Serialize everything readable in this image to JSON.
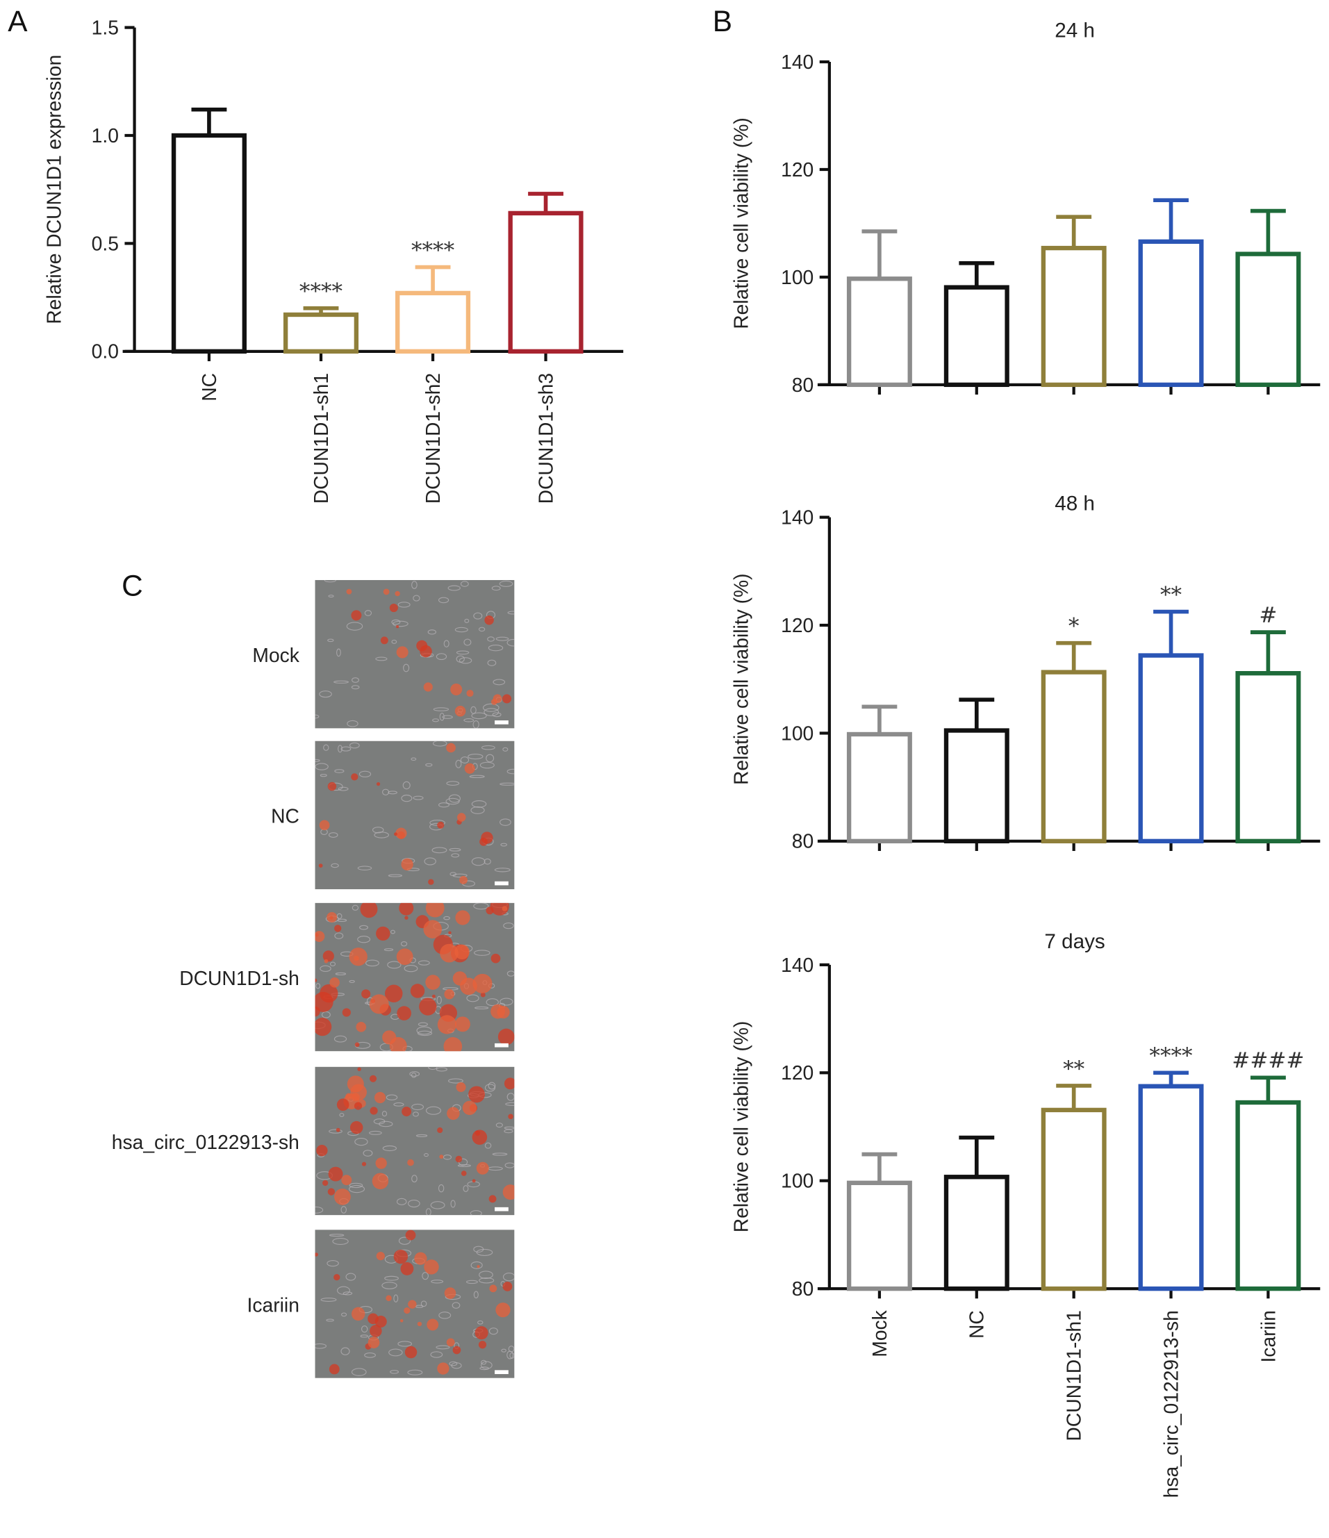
{
  "panel_letters": {
    "a": "A",
    "b": "B",
    "c": "C"
  },
  "colors": {
    "Mock": "#8c8c8c",
    "NC": "#111111",
    "DCUN1D1-sh1": "#8f7f3a",
    "DCUN1D1-sh2": "#f5b97c",
    "DCUN1D1-sh3": "#a8232f",
    "hsa_circ_0122913-sh": "#2a55b5",
    "Icariin": "#1e6b3a"
  },
  "chart_data": [
    {
      "panel": "A",
      "type": "bar",
      "title": "",
      "ylabel": "Relative DCUN1D1 expression",
      "xlabel": "",
      "ylim": [
        0,
        1.5
      ],
      "yticks": [
        "0.0",
        "0.5",
        "1.0",
        "1.5"
      ],
      "categories": [
        "NC",
        "DCUN1D1-sh1",
        "DCUN1D1-sh2",
        "DCUN1D1-sh3"
      ],
      "values": [
        1.0,
        0.17,
        0.27,
        0.64
      ],
      "error_upper": [
        1.12,
        0.2,
        0.39,
        0.73
      ],
      "annotations": [
        "",
        "****",
        "****",
        ""
      ],
      "grid": false
    },
    {
      "panel": "B",
      "type": "bar",
      "title": "24 h",
      "ylabel": "Relative cell viability (%)",
      "xlabel": "",
      "ylim": [
        80,
        140
      ],
      "yticks": [
        "80",
        "100",
        "120",
        "140"
      ],
      "categories": [
        "Mock",
        "NC",
        "DCUN1D1-sh1",
        "hsa_circ_0122913-sh",
        "Icariin"
      ],
      "values": [
        99.7,
        98.1,
        105.4,
        106.6,
        104.3
      ],
      "error_upper": [
        108.5,
        102.6,
        111.2,
        114.3,
        112.3
      ],
      "annotations": [
        "",
        "",
        "",
        "",
        ""
      ],
      "grid": false
    },
    {
      "panel": "B",
      "type": "bar",
      "title": "48 h",
      "ylabel": "Relative cell viability (%)",
      "xlabel": "",
      "ylim": [
        80,
        140
      ],
      "yticks": [
        "80",
        "100",
        "120",
        "140"
      ],
      "categories": [
        "Mock",
        "NC",
        "DCUN1D1-sh1",
        "hsa_circ_0122913-sh",
        "Icariin"
      ],
      "values": [
        99.8,
        100.5,
        111.3,
        114.4,
        111.1
      ],
      "error_upper": [
        104.9,
        106.2,
        116.7,
        122.5,
        118.7
      ],
      "annotations": [
        "",
        "",
        "*",
        "**",
        "#"
      ],
      "grid": false
    },
    {
      "panel": "B",
      "type": "bar",
      "title": "7 days",
      "ylabel": "Relative cell viability (%)",
      "xlabel": "",
      "ylim": [
        80,
        140
      ],
      "yticks": [
        "80",
        "100",
        "120",
        "140"
      ],
      "categories": [
        "Mock",
        "NC",
        "DCUN1D1-sh1",
        "hsa_circ_0122913-sh",
        "Icariin"
      ],
      "values": [
        99.6,
        100.7,
        113.1,
        117.5,
        114.5
      ],
      "error_upper": [
        104.9,
        108.0,
        117.6,
        120.0,
        119.1
      ],
      "annotations": [
        "",
        "",
        "**",
        "****",
        "####"
      ],
      "grid": false
    }
  ],
  "panel_c": {
    "images": [
      {
        "label": "Mock",
        "stain_level": 0.25
      },
      {
        "label": "NC",
        "stain_level": 0.25
      },
      {
        "label": "DCUN1D1-sh",
        "stain_level": 0.85
      },
      {
        "label": "hsa_circ_0122913-sh",
        "stain_level": 0.6
      },
      {
        "label": "Icariin",
        "stain_level": 0.45
      }
    ]
  }
}
